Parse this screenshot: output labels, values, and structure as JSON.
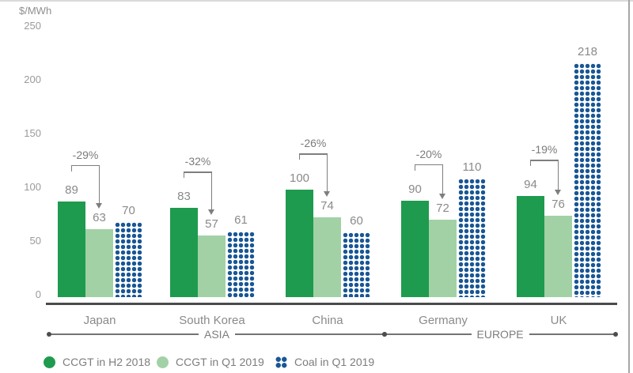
{
  "chart_data": {
    "type": "bar",
    "title": "",
    "unit_label": "$/MWh",
    "ylabel": "$/MWh",
    "xlabel": "",
    "ylim": [
      0,
      250
    ],
    "yticks": [
      0,
      50,
      100,
      150,
      200,
      250
    ],
    "grid": false,
    "legend_position": "bottom",
    "categories": [
      "Japan",
      "South Korea",
      "China",
      "Germany",
      "UK"
    ],
    "regions": [
      {
        "label": "ASIA",
        "first_category": 0,
        "last_category": 2
      },
      {
        "label": "EUROPE",
        "first_category": 3,
        "last_category": 4
      }
    ],
    "series": [
      {
        "name": "CCGT in H2 2018",
        "style": "solid",
        "color": "#1E9B4E",
        "values": [
          89,
          83,
          100,
          90,
          94
        ]
      },
      {
        "name": "CCGT in Q1 2019",
        "style": "solid",
        "color": "#A2D1A6",
        "values": [
          63,
          57,
          74,
          72,
          76
        ]
      },
      {
        "name": "Coal in Q1 2019",
        "style": "dotted",
        "color": "#1A5796",
        "values": [
          70,
          61,
          60,
          110,
          218
        ]
      }
    ],
    "pct_change_labels": [
      "-29%",
      "-32%",
      "-26%",
      "-20%",
      "-19%"
    ],
    "pct_change_note_colors": {
      "line": "#7e7e7e"
    }
  }
}
